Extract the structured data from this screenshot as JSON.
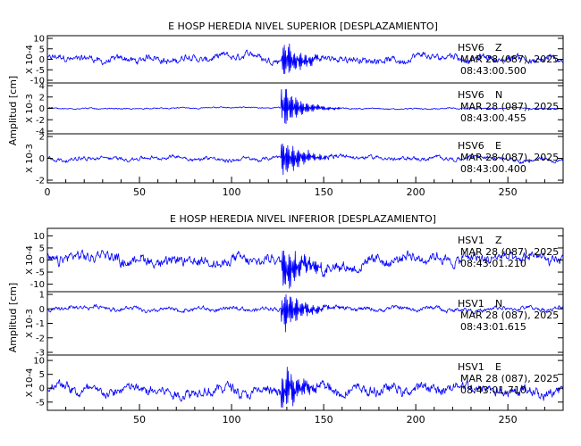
{
  "chart_data": [
    {
      "type": "line",
      "title": "E HOSP HEREDIA NIVEL SUPERIOR [DESPLAZAMIENTO]",
      "ylabel": "Amplitud [cm]",
      "xlim": [
        0,
        280
      ],
      "x_ticks": [
        "0",
        "50",
        "100",
        "150",
        "200",
        "250"
      ],
      "grid": false,
      "panels": [
        {
          "exponent": "X 10-4",
          "ylim": [
            -10,
            10
          ],
          "y_ticks": [
            "10",
            "5",
            "0",
            "-5",
            "-10"
          ],
          "station": "HSV6",
          "component": "Z",
          "date": "MAR 28 (087), 2025",
          "time": "08:43:00.500",
          "noise_level": 2.2,
          "event_peak": 9
        },
        {
          "exponent": "X 10-3",
          "ylim": [
            -4,
            4
          ],
          "y_ticks": [
            "4",
            "2",
            "0",
            "-2",
            "-4"
          ],
          "station": "HSV6",
          "component": "N",
          "date": "MAR 28 (087), 2025",
          "time": "08:43:00.455",
          "noise_level": 0.15,
          "event_peak": 3.5
        },
        {
          "exponent": "X 10-3",
          "ylim": [
            -2,
            2
          ],
          "y_ticks": [
            "2",
            "0",
            "-2"
          ],
          "station": "HSV6",
          "component": "E",
          "date": "MAR 28 (087), 2025",
          "time": "08:43:00.400",
          "noise_level": 0.25,
          "event_peak": 1.8
        }
      ]
    },
    {
      "type": "line",
      "title": "E HOSP HEREDIA NIVEL INFERIOR [DESPLAZAMIENTO]",
      "ylabel": "Amplitud [cm]",
      "xlim": [
        0,
        280
      ],
      "x_ticks": [
        "50",
        "100",
        "150",
        "200",
        "250"
      ],
      "grid": false,
      "panels": [
        {
          "exponent": "X 10-4",
          "ylim": [
            -12,
            12
          ],
          "y_ticks": [
            "10",
            "5",
            "0",
            "-5",
            "-10"
          ],
          "station": "HSV1",
          "component": "Z",
          "date": "MAR 28 (087), 2025",
          "time": "08:43:01.210",
          "noise_level": 3.0,
          "event_peak": 10
        },
        {
          "exponent": "X 10-3",
          "ylim": [
            -3,
            1
          ],
          "y_ticks": [
            "1",
            "0",
            "-1",
            "-2",
            "-3"
          ],
          "station": "HSV1",
          "component": "N",
          "date": "MAR 28 (087), 2025",
          "time": "08:43:01.615",
          "noise_level": 0.2,
          "event_peak": 1.5
        },
        {
          "exponent": "X 10-4",
          "ylim": [
            -7,
            11
          ],
          "y_ticks": [
            "10",
            "5",
            "0",
            "-5"
          ],
          "station": "HSV1",
          "component": "E",
          "date": "MAR 28 (087), 2025",
          "time": "08:43:01.710",
          "noise_level": 2.5,
          "event_peak": 8
        }
      ]
    }
  ],
  "colors": {
    "trace": "#0000ff",
    "axes": "#000000",
    "background": "#ffffff"
  }
}
